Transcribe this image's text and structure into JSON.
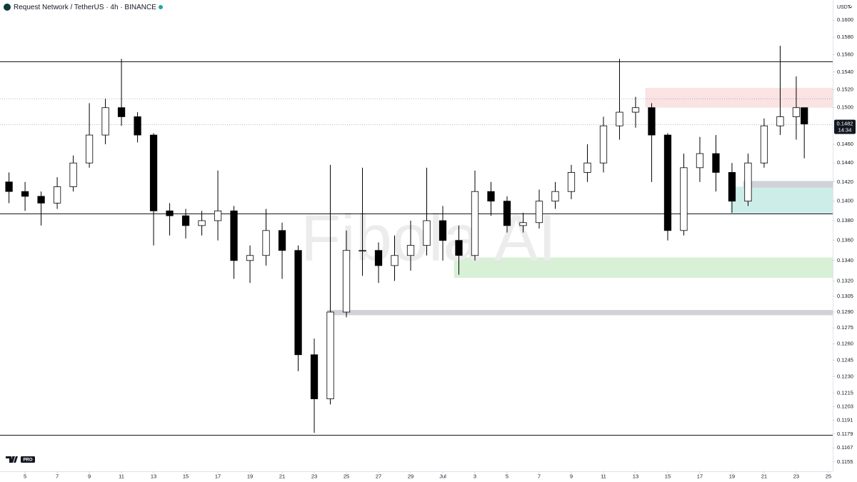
{
  "chart_data": {
    "type": "candlestick",
    "title": "Request Network / TetherUS · 4h · BINANCE",
    "currency": "USDT",
    "countdown": "14:34",
    "watermark": "Fibola AI",
    "logo_badge": "PRO",
    "log_scale": true,
    "grid": false,
    "up_color": "#ffffff",
    "down_color": "#000000",
    "x": [
      -1,
      0,
      1,
      2,
      3,
      4,
      5,
      6,
      7,
      8,
      9,
      10,
      11,
      12,
      13,
      14,
      15,
      16,
      17,
      18,
      19,
      20,
      21,
      22,
      23,
      24,
      25,
      26,
      27,
      28,
      29,
      30,
      31,
      32,
      33,
      34,
      35,
      36,
      37,
      38,
      39,
      40,
      41,
      42,
      43,
      44,
      45,
      46,
      47,
      48,
      48.5
    ],
    "open": [
      0.142,
      0.141,
      0.1405,
      0.1398,
      0.1415,
      0.144,
      0.147,
      0.15,
      0.149,
      0.147,
      0.139,
      0.1385,
      0.1375,
      0.138,
      0.139,
      0.134,
      0.1345,
      0.137,
      0.135,
      0.125,
      0.121,
      0.129,
      0.135,
      0.135,
      0.1335,
      0.1345,
      0.1355,
      0.138,
      0.136,
      0.1345,
      0.141,
      0.14,
      0.1375,
      0.1378,
      0.14,
      0.141,
      0.143,
      0.144,
      0.148,
      0.1495,
      0.15,
      0.147,
      0.137,
      0.1435,
      0.145,
      0.143,
      0.14,
      0.144,
      0.148,
      0.149,
      0.15
    ],
    "high": [
      0.143,
      0.142,
      0.141,
      0.1425,
      0.1448,
      0.1505,
      0.151,
      0.1555,
      0.1495,
      0.1472,
      0.1398,
      0.1392,
      0.139,
      0.1432,
      0.1395,
      0.1355,
      0.1392,
      0.1378,
      0.1355,
      0.1265,
      0.1438,
      0.137,
      0.1435,
      0.1358,
      0.1365,
      0.138,
      0.1435,
      0.1395,
      0.1375,
      0.1432,
      0.142,
      0.1405,
      0.1388,
      0.1412,
      0.142,
      0.1438,
      0.146,
      0.149,
      0.1555,
      0.1512,
      0.1505,
      0.1472,
      0.145,
      0.1468,
      0.147,
      0.144,
      0.145,
      0.1488,
      0.157,
      0.1535,
      0.15
    ],
    "low": [
      0.1398,
      0.139,
      0.1375,
      0.1392,
      0.141,
      0.1435,
      0.146,
      0.148,
      0.1462,
      0.1355,
      0.1365,
      0.1362,
      0.1365,
      0.136,
      0.1322,
      0.1318,
      0.1335,
      0.1322,
      0.1235,
      0.118,
      0.1205,
      0.1285,
      0.1325,
      0.1318,
      0.132,
      0.133,
      0.1345,
      0.134,
      0.1326,
      0.134,
      0.1385,
      0.1368,
      0.1368,
      0.1372,
      0.1392,
      0.1402,
      0.142,
      0.143,
      0.1465,
      0.1478,
      0.142,
      0.136,
      0.1365,
      0.142,
      0.141,
      0.1388,
      0.1395,
      0.1435,
      0.147,
      0.1465,
      0.1445
    ],
    "close": [
      0.141,
      0.1405,
      0.1398,
      0.1415,
      0.144,
      0.147,
      0.15,
      0.149,
      0.147,
      0.139,
      0.1385,
      0.1375,
      0.138,
      0.139,
      0.134,
      0.1345,
      0.137,
      0.135,
      0.125,
      0.121,
      0.129,
      0.135,
      0.135,
      0.1335,
      0.1345,
      0.1355,
      0.138,
      0.136,
      0.1345,
      0.141,
      0.14,
      0.1375,
      0.1378,
      0.14,
      0.141,
      0.143,
      0.144,
      0.148,
      0.1495,
      0.15,
      0.147,
      0.137,
      0.1435,
      0.145,
      0.143,
      0.14,
      0.144,
      0.148,
      0.149,
      0.15,
      0.1482
    ],
    "xlim": [
      -1.56,
      50.27
    ],
    "ylim": [
      0.1147,
      0.1624
    ],
    "xticks": [
      {
        "value": 0,
        "label": "5"
      },
      {
        "value": 2,
        "label": "7"
      },
      {
        "value": 4,
        "label": "9"
      },
      {
        "value": 6,
        "label": "11"
      },
      {
        "value": 8,
        "label": "13"
      },
      {
        "value": 10,
        "label": "15"
      },
      {
        "value": 12,
        "label": "17"
      },
      {
        "value": 14,
        "label": "19"
      },
      {
        "value": 16,
        "label": "21"
      },
      {
        "value": 18,
        "label": "23"
      },
      {
        "value": 20,
        "label": "25"
      },
      {
        "value": 22,
        "label": "27"
      },
      {
        "value": 24,
        "label": "29"
      },
      {
        "value": 26,
        "label": "Jul"
      },
      {
        "value": 28,
        "label": "3"
      },
      {
        "value": 30,
        "label": "5"
      },
      {
        "value": 32,
        "label": "7"
      },
      {
        "value": 34,
        "label": "9"
      },
      {
        "value": 36,
        "label": "11"
      },
      {
        "value": 38,
        "label": "13"
      },
      {
        "value": 40,
        "label": "15"
      },
      {
        "value": 42,
        "label": "17"
      },
      {
        "value": 44,
        "label": "19"
      },
      {
        "value": 46,
        "label": "21"
      },
      {
        "value": 48,
        "label": "23"
      },
      {
        "value": 50,
        "label": "25"
      }
    ],
    "yticks": [
      {
        "value": 0.16,
        "label": "0.1600"
      },
      {
        "value": 0.158,
        "label": "0.1580"
      },
      {
        "value": 0.156,
        "label": "0.1560"
      },
      {
        "value": 0.154,
        "label": "0.1540"
      },
      {
        "value": 0.152,
        "label": "0.1520"
      },
      {
        "value": 0.15,
        "label": "0.1500"
      },
      {
        "value": 0.146,
        "label": "0.1460"
      },
      {
        "value": 0.144,
        "label": "0.1440"
      },
      {
        "value": 0.142,
        "label": "0.1420"
      },
      {
        "value": 0.14,
        "label": "0.1400"
      },
      {
        "value": 0.138,
        "label": "0.1380"
      },
      {
        "value": 0.136,
        "label": "0.1360"
      },
      {
        "value": 0.134,
        "label": "0.1340"
      },
      {
        "value": 0.132,
        "label": "0.1320"
      },
      {
        "value": 0.1305,
        "label": "0.1305"
      },
      {
        "value": 0.129,
        "label": "0.1290"
      },
      {
        "value": 0.1275,
        "label": "0.1275"
      },
      {
        "value": 0.126,
        "label": "0.1260"
      },
      {
        "value": 0.1245,
        "label": "0.1245"
      },
      {
        "value": 0.123,
        "label": "0.1230"
      },
      {
        "value": 0.1215,
        "label": "0.1215"
      },
      {
        "value": 0.1203,
        "label": "0.1203"
      },
      {
        "value": 0.1191,
        "label": "0.1191"
      },
      {
        "value": 0.1179,
        "label": "0.1179"
      },
      {
        "value": 0.1167,
        "label": "0.1167"
      },
      {
        "value": 0.1155,
        "label": "0.1155"
      }
    ],
    "levels": [
      {
        "value": 0.1552,
        "style": "solid"
      },
      {
        "value": 0.1387,
        "style": "solid"
      },
      {
        "value": 0.1178,
        "style": "solid"
      },
      {
        "value": 0.151,
        "style": "dotted"
      },
      {
        "value": 0.1482,
        "style": "dotted"
      }
    ],
    "zones": [
      {
        "from_x": 38.6,
        "top": 0.1522,
        "bottom": 0.15,
        "color": "#fbe3e3"
      },
      {
        "from_x": 43.9,
        "top": 0.1415,
        "bottom": 0.1387,
        "color": "#cdeee8"
      },
      {
        "from_x": 44.7,
        "top": 0.1421,
        "bottom": 0.1414,
        "color": "#d0d2d8"
      },
      {
        "from_x": 26.7,
        "top": 0.1343,
        "bottom": 0.1323,
        "color": "#d8f0d6"
      },
      {
        "from_x": 18.8,
        "top": 0.1292,
        "bottom": 0.1287,
        "color": "#d0d2d8"
      }
    ]
  }
}
